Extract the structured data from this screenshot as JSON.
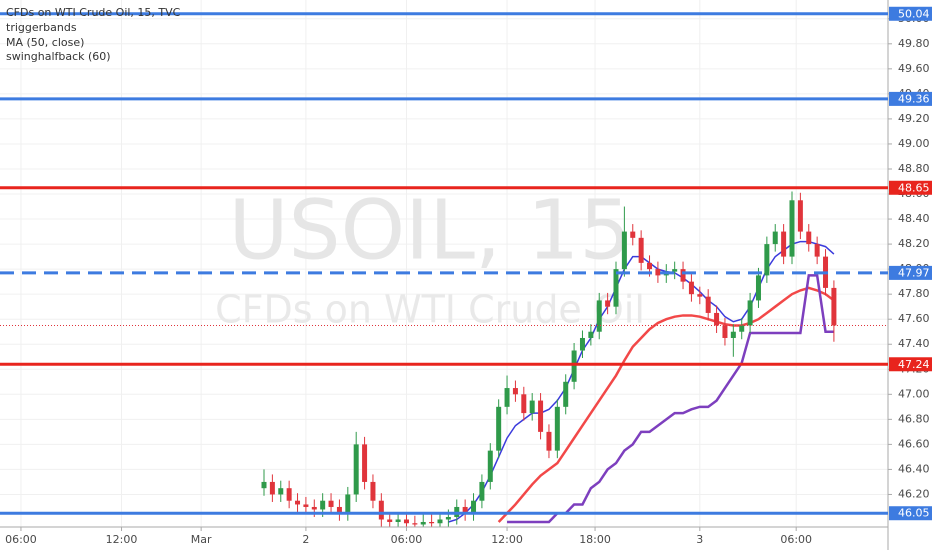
{
  "chart_data": {
    "type": "candlestick",
    "title": "CFDs on WTI Crude Oil, 15, TVC",
    "watermark": "USOIL, 15",
    "watermark_subtitle": "CFDs on WTI Crude Oil",
    "up_color": "#2f9a4a",
    "down_color": "#e0343b",
    "grid": true,
    "xlim": [
      0,
      210
    ],
    "ylim": [
      45.94,
      50.15
    ],
    "xticks": [
      {
        "value": 5,
        "label": "06:00"
      },
      {
        "value": 29,
        "label": "12:00"
      },
      {
        "value": 48,
        "label": "Mar"
      },
      {
        "value": 73,
        "label": "2"
      },
      {
        "value": 97,
        "label": "06:00"
      },
      {
        "value": 121,
        "label": "12:00"
      },
      {
        "value": 142,
        "label": "18:00"
      },
      {
        "value": 167,
        "label": "3"
      },
      {
        "value": 190,
        "label": "06:00"
      }
    ],
    "yticks": [
      {
        "value": 46.2,
        "label": "46.20"
      },
      {
        "value": 46.4,
        "label": "46.40"
      },
      {
        "value": 46.6,
        "label": "46.60"
      },
      {
        "value": 46.8,
        "label": "46.80"
      },
      {
        "value": 47,
        "label": "47.00"
      },
      {
        "value": 47.2,
        "label": "47.20"
      },
      {
        "value": 47.4,
        "label": "47.40"
      },
      {
        "value": 47.6,
        "label": "47.60"
      },
      {
        "value": 47.8,
        "label": "47.80"
      },
      {
        "value": 48,
        "label": "48.00"
      },
      {
        "value": 48.2,
        "label": "48.20"
      },
      {
        "value": 48.4,
        "label": "48.40"
      },
      {
        "value": 48.6,
        "label": "48.60"
      },
      {
        "value": 48.8,
        "label": "48.80"
      },
      {
        "value": 49,
        "label": "49.00"
      },
      {
        "value": 49.2,
        "label": "49.20"
      },
      {
        "value": 49.4,
        "label": "49.40"
      },
      {
        "value": 49.6,
        "label": "49.60"
      },
      {
        "value": 49.8,
        "label": "49.80"
      },
      {
        "value": 50,
        "label": "50.00"
      }
    ],
    "x": [
      63,
      65,
      67,
      69,
      71,
      73,
      75,
      77,
      79,
      81,
      83,
      85,
      87,
      89,
      91,
      93,
      95,
      97,
      99,
      101,
      103,
      105,
      107,
      109,
      111,
      113,
      115,
      117,
      119,
      121,
      123,
      125,
      127,
      129,
      131,
      133,
      135,
      137,
      139,
      141,
      143,
      145,
      147,
      149,
      151,
      153,
      155,
      157,
      159,
      161,
      163,
      165,
      167,
      169,
      171,
      173,
      175,
      177,
      179,
      181,
      183,
      185,
      187,
      189,
      191,
      193,
      195,
      197,
      199
    ],
    "open": [
      46.25,
      46.3,
      46.2,
      46.25,
      46.15,
      46.12,
      46.1,
      46.08,
      46.15,
      46.1,
      46.05,
      46.2,
      46.6,
      46.3,
      46.15,
      46.0,
      45.98,
      46.0,
      45.97,
      45.96,
      45.98,
      45.97,
      46.0,
      46.02,
      46.1,
      46.05,
      46.15,
      46.3,
      46.55,
      46.9,
      47.05,
      47.0,
      46.85,
      46.95,
      46.7,
      46.55,
      46.9,
      47.1,
      47.35,
      47.45,
      47.5,
      47.75,
      47.7,
      48.0,
      48.3,
      48.25,
      48.05,
      48.0,
      47.95,
      47.98,
      48.0,
      47.9,
      47.8,
      47.78,
      47.65,
      47.55,
      47.45,
      47.5,
      47.55,
      47.75,
      47.95,
      48.2,
      48.3,
      48.1,
      48.55,
      48.3,
      48.2,
      48.1,
      47.85
    ],
    "high": [
      46.4,
      46.36,
      46.31,
      46.31,
      46.21,
      46.18,
      46.16,
      46.21,
      46.21,
      46.16,
      46.26,
      46.7,
      46.66,
      46.36,
      46.21,
      46.06,
      46.06,
      46.06,
      46.03,
      46.04,
      46.04,
      46.06,
      46.08,
      46.16,
      46.16,
      46.21,
      46.36,
      46.61,
      46.96,
      47.15,
      47.11,
      47.06,
      47.01,
      47.01,
      46.76,
      46.96,
      47.16,
      47.41,
      47.51,
      47.56,
      47.81,
      47.81,
      48.06,
      48.5,
      48.36,
      48.31,
      48.11,
      48.06,
      48.04,
      48.06,
      48.06,
      47.96,
      47.86,
      47.84,
      47.71,
      47.61,
      47.56,
      47.61,
      47.81,
      48.01,
      48.26,
      48.36,
      48.36,
      48.62,
      48.61,
      48.36,
      48.26,
      48.16,
      47.91
    ],
    "low": [
      46.19,
      46.14,
      46.14,
      46.09,
      46.06,
      46.04,
      46.02,
      46.02,
      46.04,
      45.99,
      45.99,
      46.14,
      46.24,
      46.09,
      45.94,
      45.92,
      45.92,
      45.91,
      45.9,
      45.9,
      45.91,
      45.91,
      45.94,
      45.96,
      45.99,
      45.99,
      46.09,
      46.24,
      46.49,
      46.84,
      46.94,
      46.79,
      46.79,
      46.64,
      46.49,
      46.49,
      46.84,
      47.04,
      47.29,
      47.39,
      47.44,
      47.64,
      47.64,
      47.94,
      48.19,
      47.99,
      47.94,
      47.89,
      47.89,
      47.92,
      47.84,
      47.74,
      47.72,
      47.59,
      47.49,
      47.39,
      47.3,
      47.44,
      47.49,
      47.69,
      47.89,
      48.14,
      48.04,
      48.04,
      48.24,
      48.14,
      48.04,
      47.79,
      47.42
    ],
    "close": [
      46.3,
      46.2,
      46.25,
      46.15,
      46.12,
      46.1,
      46.08,
      46.15,
      46.1,
      46.05,
      46.2,
      46.6,
      46.3,
      46.15,
      46.0,
      45.98,
      46.0,
      45.97,
      45.96,
      45.98,
      45.97,
      46.0,
      46.02,
      46.1,
      46.05,
      46.15,
      46.3,
      46.55,
      46.9,
      47.05,
      47.0,
      46.85,
      46.95,
      46.7,
      46.55,
      46.9,
      47.1,
      47.35,
      47.45,
      47.5,
      47.75,
      47.7,
      48.0,
      48.3,
      48.25,
      48.05,
      48.0,
      47.95,
      47.98,
      48.0,
      47.9,
      47.8,
      47.78,
      47.65,
      47.55,
      47.45,
      47.5,
      47.55,
      47.75,
      47.95,
      48.2,
      48.3,
      48.1,
      48.55,
      48.3,
      48.2,
      48.1,
      47.85,
      47.55
    ],
    "series": [
      {
        "name": "triggerbands",
        "color": "#3b3bdc",
        "values": [
          null,
          null,
          null,
          null,
          null,
          null,
          null,
          null,
          null,
          null,
          null,
          null,
          null,
          null,
          null,
          null,
          null,
          null,
          null,
          null,
          null,
          null,
          45.98,
          46.0,
          46.05,
          46.12,
          46.22,
          46.35,
          46.5,
          46.65,
          46.75,
          46.8,
          46.85,
          46.85,
          46.88,
          46.95,
          47.05,
          47.2,
          47.35,
          47.45,
          47.6,
          47.7,
          47.85,
          48.0,
          48.1,
          48.1,
          48.05,
          48.0,
          47.98,
          47.97,
          47.93,
          47.88,
          47.82,
          47.75,
          47.7,
          47.62,
          47.58,
          47.6,
          47.7,
          47.85,
          48.0,
          48.1,
          48.15,
          48.2,
          48.22,
          48.22,
          48.2,
          48.18,
          48.12
        ]
      },
      {
        "name": "MA (50, close)",
        "color": "#f24848",
        "values": [
          null,
          null,
          null,
          null,
          null,
          null,
          null,
          null,
          null,
          null,
          null,
          null,
          null,
          null,
          null,
          null,
          null,
          null,
          null,
          null,
          null,
          null,
          null,
          null,
          null,
          null,
          null,
          null,
          45.98,
          46.05,
          46.12,
          46.2,
          46.28,
          46.35,
          46.4,
          46.45,
          46.55,
          46.65,
          46.75,
          46.85,
          46.95,
          47.05,
          47.15,
          47.27,
          47.38,
          47.45,
          47.52,
          47.57,
          47.6,
          47.62,
          47.63,
          47.63,
          47.62,
          47.6,
          47.58,
          47.56,
          47.55,
          47.55,
          47.57,
          47.6,
          47.65,
          47.7,
          47.75,
          47.8,
          47.83,
          47.85,
          47.83,
          47.8,
          47.75
        ]
      },
      {
        "name": "swinghalfback (60)",
        "color": "#7d3fbe",
        "values": [
          null,
          null,
          null,
          null,
          null,
          null,
          null,
          null,
          null,
          null,
          null,
          null,
          null,
          null,
          null,
          null,
          null,
          null,
          null,
          null,
          null,
          null,
          null,
          null,
          null,
          null,
          null,
          null,
          null,
          45.98,
          45.98,
          45.98,
          45.98,
          45.98,
          45.98,
          46.05,
          46.05,
          46.12,
          46.12,
          46.25,
          46.3,
          46.4,
          46.45,
          46.55,
          46.6,
          46.7,
          46.7,
          46.75,
          46.8,
          46.85,
          46.85,
          46.88,
          46.9,
          46.9,
          46.95,
          47.05,
          47.15,
          47.25,
          47.49,
          47.49,
          47.49,
          47.49,
          47.49,
          47.49,
          47.49,
          47.95,
          47.95,
          47.5,
          47.5
        ]
      }
    ],
    "levels": [
      {
        "value": 50.04,
        "color": "#3d7be0",
        "dashed": false
      },
      {
        "value": 49.36,
        "color": "#3d7be0",
        "dashed": false
      },
      {
        "value": 48.65,
        "color": "#e8241d",
        "dashed": false
      },
      {
        "value": 47.97,
        "color": "#3d7be0",
        "dashed": true
      },
      {
        "value": 47.24,
        "color": "#e8241d",
        "dashed": false
      },
      {
        "value": 46.05,
        "color": "#3d7be0",
        "dashed": false
      }
    ],
    "last_price": 47.55
  }
}
